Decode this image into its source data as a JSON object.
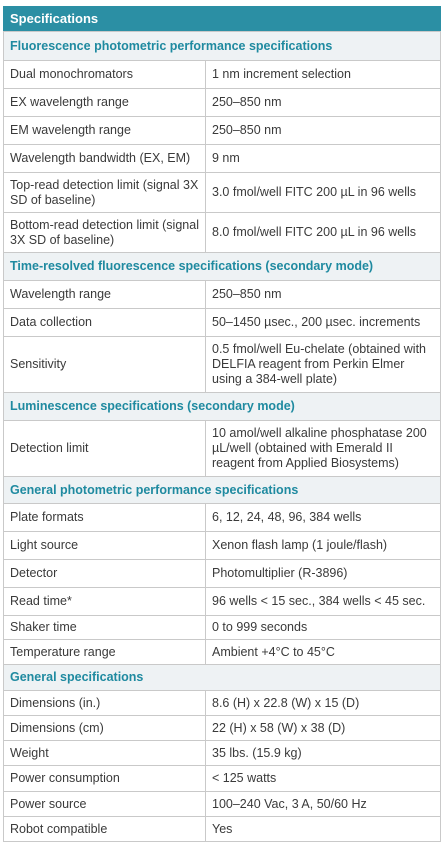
{
  "header": {
    "title": "Specifications"
  },
  "sections": [
    {
      "title": "Fluorescence photometric performance specifications",
      "rows": [
        [
          "Dual monochromators",
          "1 nm increment selection"
        ],
        [
          "EX wavelength range",
          "250–850 nm"
        ],
        [
          "EM wavelength range",
          "250–850 nm"
        ],
        [
          "Wavelength bandwidth (EX, EM)",
          "9 nm"
        ],
        [
          "Top-read detection limit (signal 3X SD of baseline)",
          "3.0 fmol/well FITC 200 µL in 96 wells"
        ],
        [
          "Bottom-read detection limit (signal 3X SD of baseline)",
          "8.0 fmol/well FITC 200 µL in 96 wells"
        ]
      ]
    },
    {
      "title": "Time-resolved fluorescence specifications (secondary mode)",
      "rows": [
        [
          "Wavelength range",
          "250–850 nm"
        ],
        [
          "Data collection",
          "50–1450 µsec., 200 µsec. increments"
        ],
        [
          "Sensitivity",
          "0.5 fmol/well Eu-chelate (obtained with DELFIA reagent from Perkin Elmer using a 384-well plate)"
        ]
      ]
    },
    {
      "title": "Luminescence specifications (secondary mode)",
      "rows": [
        [
          "Detection limit",
          "10 amol/well alkaline phosphatase 200 µL/well (obtained with Emerald II reagent from Applied Biosystems)"
        ]
      ]
    },
    {
      "title": "General photometric performance specifications",
      "rows": [
        [
          "Plate formats",
          "6, 12, 24, 48, 96, 384 wells"
        ],
        [
          "Light source",
          "Xenon flash lamp (1 joule/flash)"
        ],
        [
          "Detector",
          "Photomultiplier (R-3896)"
        ],
        [
          "Read time*",
          "96 wells < 15 sec., 384 wells < 45 sec."
        ],
        [
          "Shaker time",
          "0 to 999 seconds"
        ],
        [
          "Temperature range",
          "Ambient +4°C to 45°C"
        ]
      ]
    },
    {
      "title": "General specifications",
      "rows": [
        [
          "Dimensions (in.)",
          "8.6 (H) x 22.8 (W) x 15 (D)"
        ],
        [
          "Dimensions (cm)",
          "22 (H) x 58 (W) x 38 (D)"
        ],
        [
          "Weight",
          "35 lbs. (15.9 kg)"
        ],
        [
          "Power consumption",
          "< 125 watts"
        ],
        [
          "Power source",
          "100–240 Vac, 3 A, 50/60 Hz"
        ],
        [
          "Robot compatible",
          "Yes"
        ]
      ]
    }
  ]
}
